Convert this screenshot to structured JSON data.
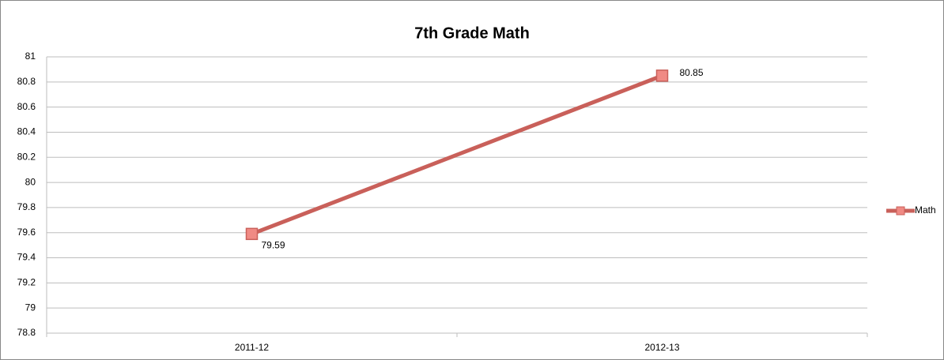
{
  "chart_data": {
    "type": "line",
    "title": "7th Grade Math",
    "categories": [
      "2011-12",
      "2012-13"
    ],
    "series": [
      {
        "name": "Math",
        "color": "#c9605a",
        "marker_fill": "#f08a84",
        "values": [
          79.59,
          80.85
        ]
      }
    ],
    "ylim": [
      78.8,
      81
    ],
    "yticks": [
      78.8,
      79,
      79.2,
      79.4,
      79.6,
      79.8,
      80,
      80.2,
      80.4,
      80.6,
      80.8,
      81
    ],
    "grid": true,
    "legend": "right"
  }
}
